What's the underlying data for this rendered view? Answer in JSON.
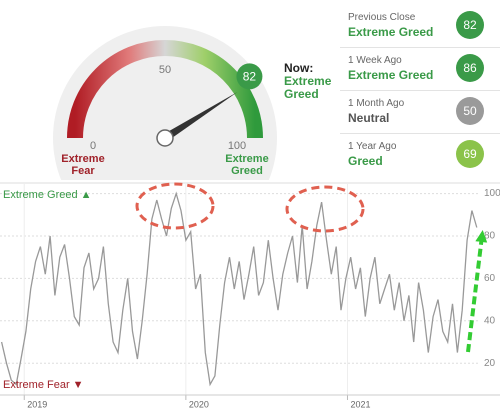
{
  "chart_data": [
    {
      "type": "gauge",
      "value": 82,
      "range": [
        0,
        100
      ],
      "ticks": [
        0,
        50,
        100
      ],
      "low_label": "Extreme Fear",
      "high_label": "Extreme Greed",
      "now_label": "Now:",
      "rating": "Extreme Greed",
      "color": "#3a9a48"
    },
    {
      "type": "line",
      "top_label": "Extreme Greed ▲",
      "bottom_label": "Extreme Fear ▼",
      "color": "#999999",
      "xlim": [
        2018.85,
        2021.82
      ],
      "xticks": [
        2019,
        2020,
        2021
      ],
      "ylim": [
        5,
        105
      ],
      "yticks": [
        20,
        40,
        60,
        80,
        100
      ],
      "grid": true,
      "x": [
        2018.86,
        2018.89,
        2018.92,
        2018.95,
        2018.98,
        2019.01,
        2019.04,
        2019.07,
        2019.1,
        2019.13,
        2019.16,
        2019.19,
        2019.22,
        2019.25,
        2019.28,
        2019.31,
        2019.34,
        2019.37,
        2019.4,
        2019.43,
        2019.46,
        2019.49,
        2019.52,
        2019.55,
        2019.58,
        2019.61,
        2019.64,
        2019.67,
        2019.7,
        2019.73,
        2019.76,
        2019.79,
        2019.82,
        2019.85,
        2019.88,
        2019.91,
        2019.94,
        2019.97,
        2020.0,
        2020.03,
        2020.06,
        2020.09,
        2020.12,
        2020.15,
        2020.18,
        2020.21,
        2020.24,
        2020.27,
        2020.3,
        2020.33,
        2020.36,
        2020.39,
        2020.42,
        2020.45,
        2020.48,
        2020.51,
        2020.54,
        2020.57,
        2020.6,
        2020.63,
        2020.66,
        2020.69,
        2020.72,
        2020.75,
        2020.78,
        2020.81,
        2020.84,
        2020.87,
        2020.9,
        2020.93,
        2020.96,
        2020.99,
        2021.02,
        2021.05,
        2021.08,
        2021.11,
        2021.14,
        2021.17,
        2021.2,
        2021.23,
        2021.26,
        2021.29,
        2021.32,
        2021.35,
        2021.38,
        2021.41,
        2021.44,
        2021.47,
        2021.5,
        2021.53,
        2021.56,
        2021.59,
        2021.62,
        2021.65,
        2021.68,
        2021.71,
        2021.74,
        2021.77,
        2021.8
      ],
      "values": [
        30,
        20,
        12,
        10,
        22,
        35,
        55,
        68,
        75,
        62,
        80,
        52,
        70,
        76,
        60,
        42,
        38,
        65,
        72,
        55,
        60,
        75,
        48,
        30,
        25,
        45,
        60,
        35,
        22,
        40,
        62,
        88,
        97,
        88,
        80,
        93,
        100,
        92,
        78,
        82,
        55,
        62,
        25,
        10,
        14,
        38,
        58,
        70,
        55,
        68,
        50,
        62,
        75,
        52,
        58,
        78,
        60,
        45,
        62,
        72,
        80,
        58,
        85,
        55,
        68,
        85,
        96,
        78,
        62,
        75,
        45,
        60,
        70,
        55,
        65,
        42,
        60,
        70,
        48,
        55,
        62,
        45,
        58,
        40,
        52,
        30,
        58,
        45,
        25,
        42,
        50,
        35,
        30,
        48,
        25,
        45,
        78,
        92,
        84
      ]
    }
  ],
  "comparisons": [
    {
      "label": "Previous Close",
      "rating": "Extreme Greed",
      "value": 82,
      "color": "#3a9a48",
      "rating_color": "#3a9a48"
    },
    {
      "label": "1 Week Ago",
      "rating": "Extreme Greed",
      "value": 86,
      "color": "#3a9a48",
      "rating_color": "#3a9a48"
    },
    {
      "label": "1 Month Ago",
      "rating": "Neutral",
      "value": 50,
      "color": "#9a9a9a",
      "rating_color": "#555555"
    },
    {
      "label": "1 Year Ago",
      "rating": "Greed",
      "value": 69,
      "color": "#8bc34a",
      "rating_color": "#3a9a48"
    }
  ]
}
